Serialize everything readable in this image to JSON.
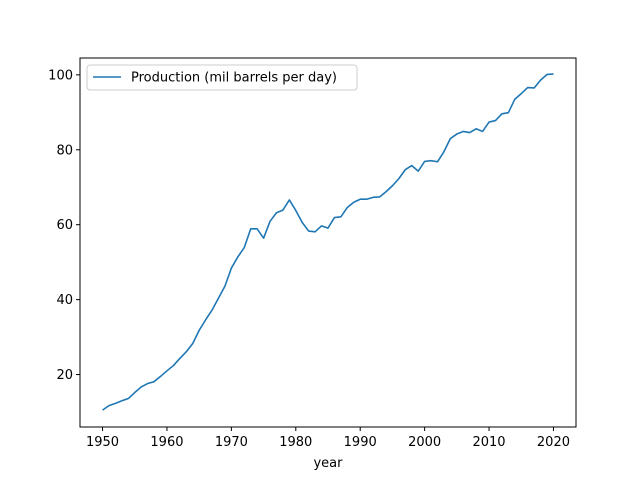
{
  "chart_data": {
    "type": "line",
    "title": "",
    "xlabel": "year",
    "ylabel": "",
    "xlim": [
      1946.5,
      2023.5
    ],
    "ylim": [
      6.0,
      104.5
    ],
    "xticks": [
      1950,
      1960,
      1970,
      1980,
      1990,
      2000,
      2010,
      2020
    ],
    "yticks": [
      20,
      40,
      60,
      80,
      100
    ],
    "grid": false,
    "legend_position": "top-left",
    "series": [
      {
        "name": "Production (mil barrels per day)",
        "color": "#1f77b4",
        "x": [
          1950,
          1951,
          1952,
          1953,
          1954,
          1955,
          1956,
          1957,
          1958,
          1959,
          1960,
          1961,
          1962,
          1963,
          1964,
          1965,
          1966,
          1967,
          1968,
          1969,
          1970,
          1971,
          1972,
          1973,
          1974,
          1975,
          1976,
          1977,
          1978,
          1979,
          1980,
          1981,
          1982,
          1983,
          1984,
          1985,
          1986,
          1987,
          1988,
          1989,
          1990,
          1991,
          1992,
          1993,
          1994,
          1995,
          1996,
          1997,
          1998,
          1999,
          2000,
          2001,
          2002,
          2003,
          2004,
          2005,
          2006,
          2007,
          2008,
          2009,
          2010,
          2011,
          2012,
          2013,
          2014,
          2015,
          2016,
          2017,
          2018,
          2019,
          2020
        ],
        "y": [
          10.5,
          11.7,
          12.3,
          13.0,
          13.6,
          15.2,
          16.7,
          17.6,
          18.1,
          19.5,
          21.0,
          22.4,
          24.3,
          26.1,
          28.3,
          31.8,
          34.6,
          37.2,
          40.4,
          43.6,
          48.4,
          51.4,
          53.9,
          58.9,
          58.9,
          56.4,
          60.9,
          63.2,
          63.9,
          66.6,
          63.8,
          60.6,
          58.3,
          58.1,
          59.7,
          59.1,
          61.9,
          62.1,
          64.6,
          66.0,
          66.8,
          66.8,
          67.3,
          67.4,
          68.8,
          70.4,
          72.3,
          74.7,
          75.8,
          74.3,
          76.9,
          77.1,
          76.8,
          79.5,
          83.0,
          84.2,
          84.9,
          84.6,
          85.6,
          84.9,
          87.4,
          87.8,
          89.6,
          89.9,
          93.5,
          95.0,
          96.6,
          96.5,
          98.6,
          100.1,
          100.2
        ]
      }
    ]
  }
}
